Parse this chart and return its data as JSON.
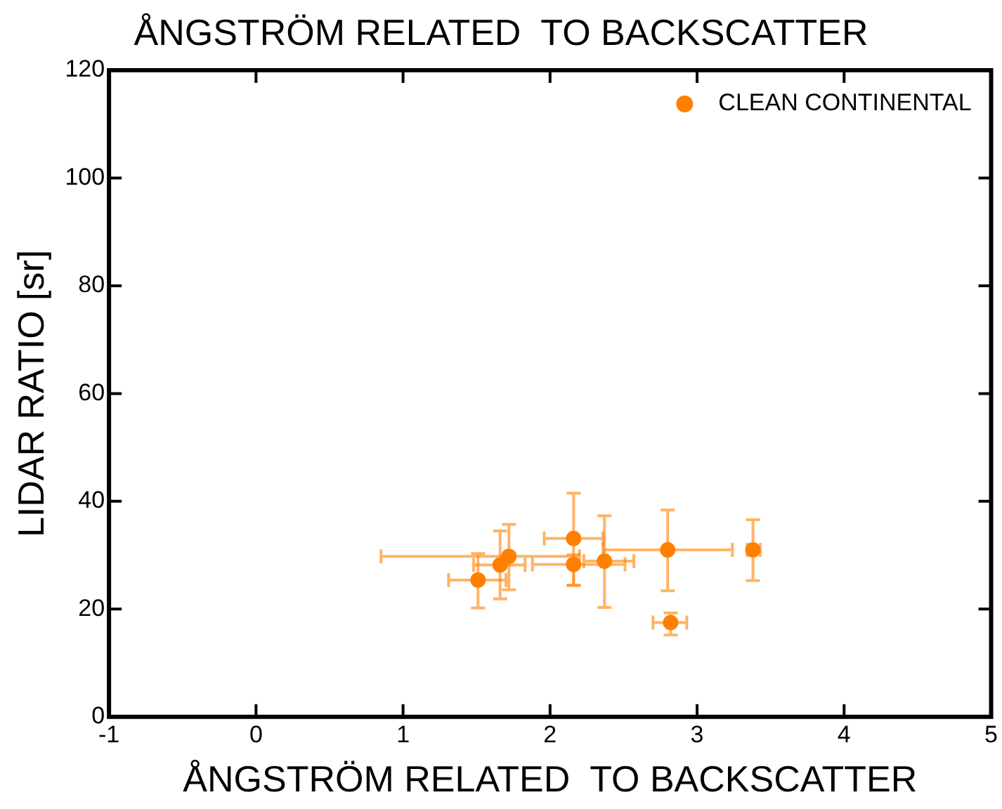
{
  "chart_data": {
    "type": "scatter",
    "title": "ÅNGSTRÖM RELATED  TO BACKSCATTER",
    "xlabel": "ÅNGSTRÖM RELATED  TO BACKSCATTER",
    "ylabel": "LIDAR RATIO [sr]",
    "xlim": [
      -1,
      5
    ],
    "xticks": [
      -1,
      0,
      1,
      2,
      3,
      4,
      5
    ],
    "ylim": [
      0,
      120
    ],
    "yticks": [
      0,
      20,
      40,
      60,
      80,
      100,
      120
    ],
    "grid": false,
    "legend": "top right",
    "marker": "circle",
    "series": [
      {
        "name": "CLEAN CONTINENTAL",
        "color": "#ff8000",
        "x": [
          1.51,
          1.66,
          1.72,
          2.16,
          2.16,
          2.37,
          2.8,
          2.82,
          3.38
        ],
        "values": [
          25.4,
          28.2,
          29.8,
          33.1,
          28.3,
          28.9,
          31.0,
          17.5,
          31.0
        ],
        "xerrors": [
          [
            1.31,
            1.7
          ],
          [
            1.48,
            1.83
          ],
          [
            0.85,
            2.2
          ],
          [
            1.96,
            2.36
          ],
          [
            1.88,
            2.51
          ],
          [
            2.23,
            2.57
          ],
          [
            2.36,
            3.24
          ],
          [
            2.7,
            2.93
          ],
          [
            3.34,
            3.43
          ]
        ],
        "errors": [
          [
            20.2,
            30.3
          ],
          [
            21.9,
            34.5
          ],
          [
            23.6,
            35.7
          ],
          [
            24.4,
            41.5
          ],
          [
            24.4,
            30.1
          ],
          [
            20.3,
            37.3
          ],
          [
            23.4,
            38.4
          ],
          [
            15.2,
            19.3
          ],
          [
            25.3,
            36.6
          ]
        ]
      }
    ]
  }
}
